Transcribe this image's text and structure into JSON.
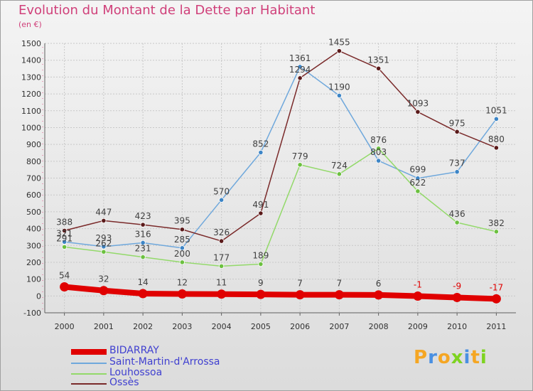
{
  "title": "Evolution du Montant de la Dette par Habitant",
  "subtitle": "(en €)",
  "logo": {
    "text": "Proxiti"
  },
  "chart_data": {
    "type": "line",
    "x": [
      "2000",
      "2001",
      "2002",
      "2003",
      "2004",
      "2005",
      "2006",
      "2007",
      "2008",
      "2009",
      "2010",
      "2011"
    ],
    "ylim": [
      -100,
      1500
    ],
    "yticks": [
      -100,
      0,
      100,
      200,
      300,
      400,
      500,
      600,
      700,
      800,
      900,
      1000,
      1100,
      1200,
      1300,
      1400,
      1500
    ],
    "grid": true,
    "legend": "bottom-left",
    "series": [
      {
        "name": "BIDARRAY",
        "color": "#e00000",
        "marker": "#e00000",
        "label_color": "#404040",
        "neg_label_color": "#e00000",
        "width": 8,
        "values": [
          54,
          32,
          14,
          12,
          11,
          9,
          7,
          7,
          6,
          -1,
          -9,
          -17
        ]
      },
      {
        "name": "Saint-Martin-d'Arrossa",
        "color": "#6fa8dc",
        "marker": "#3d85c6",
        "label_color": "#404040",
        "width": 1.5,
        "values": [
          321,
          293,
          316,
          285,
          570,
          852,
          1361,
          1190,
          803,
          699,
          737,
          1051
        ]
      },
      {
        "name": "Louhossoa",
        "color": "#93d96a",
        "marker": "#6cc040",
        "label_color": "#404040",
        "width": 1.5,
        "values": [
          291,
          262,
          231,
          200,
          177,
          189,
          779,
          724,
          876,
          622,
          436,
          382
        ]
      },
      {
        "name": "Ossès",
        "color": "#7a2a2a",
        "marker": "#5a1a1a",
        "label_color": "#404040",
        "width": 1.5,
        "values": [
          388,
          447,
          423,
          395,
          326,
          491,
          1294,
          1455,
          1351,
          1093,
          975,
          880
        ]
      }
    ],
    "labels": {
      "BIDARRAY": [
        "54",
        "32",
        "14",
        "12",
        "11",
        "9",
        "7",
        "7",
        "6",
        "-1",
        "-9",
        "-17"
      ],
      "Saint-Martin-d'Arrossa": [
        "321",
        "293",
        "316",
        "285",
        "570",
        "852",
        "1361",
        "1190",
        "803",
        "699",
        "737",
        "1051"
      ],
      "Louhossoa": [
        "291",
        "262",
        "231",
        "200",
        "177",
        "189",
        "779",
        "724",
        "876",
        "622",
        "436",
        "382"
      ],
      "Ossès": [
        "388",
        "447",
        "423",
        "395",
        "326",
        "491",
        "1294",
        "1455",
        "1351",
        "1093",
        "975",
        "880"
      ]
    }
  }
}
